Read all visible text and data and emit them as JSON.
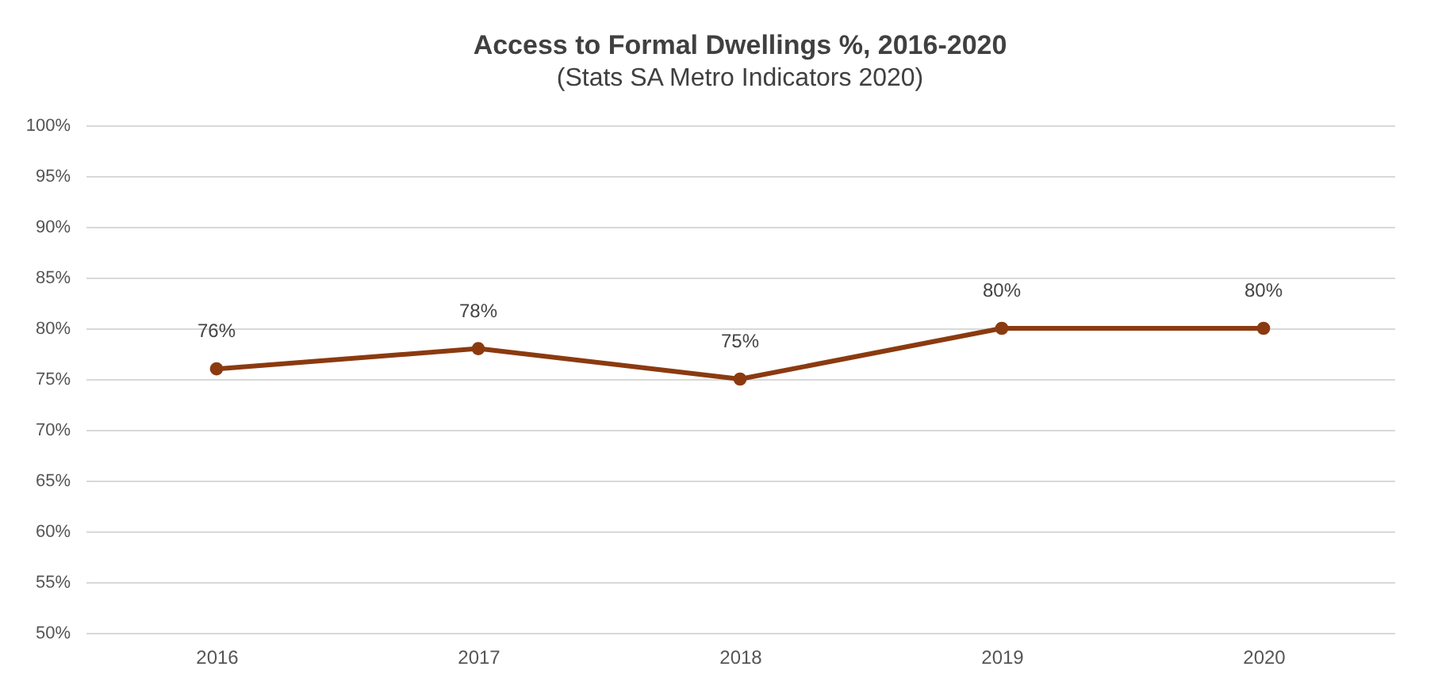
{
  "chart_data": {
    "type": "line",
    "title": "Access to Formal Dwellings %, 2016-2020",
    "subtitle": "(Stats SA Metro Indicators 2020)",
    "categories": [
      "2016",
      "2017",
      "2018",
      "2019",
      "2020"
    ],
    "series": [
      {
        "color": "#8b3a10",
        "values": [
          76,
          78,
          75,
          80,
          80
        ]
      }
    ],
    "value_labels": [
      "76%",
      "78%",
      "75%",
      "80%",
      "80%"
    ],
    "ylim": [
      50,
      100
    ],
    "yticks": [
      {
        "value": 50,
        "label": "50%"
      },
      {
        "value": 55,
        "label": "55%"
      },
      {
        "value": 60,
        "label": "60%"
      },
      {
        "value": 65,
        "label": "65%"
      },
      {
        "value": 70,
        "label": "70%"
      },
      {
        "value": 75,
        "label": "75%"
      },
      {
        "value": 80,
        "label": "80%"
      },
      {
        "value": 85,
        "label": "85%"
      },
      {
        "value": 90,
        "label": "90%"
      },
      {
        "value": 95,
        "label": "95%"
      },
      {
        "value": 100,
        "label": "100%"
      }
    ],
    "grid": "y",
    "marker": "circle",
    "line_style": "solid"
  }
}
